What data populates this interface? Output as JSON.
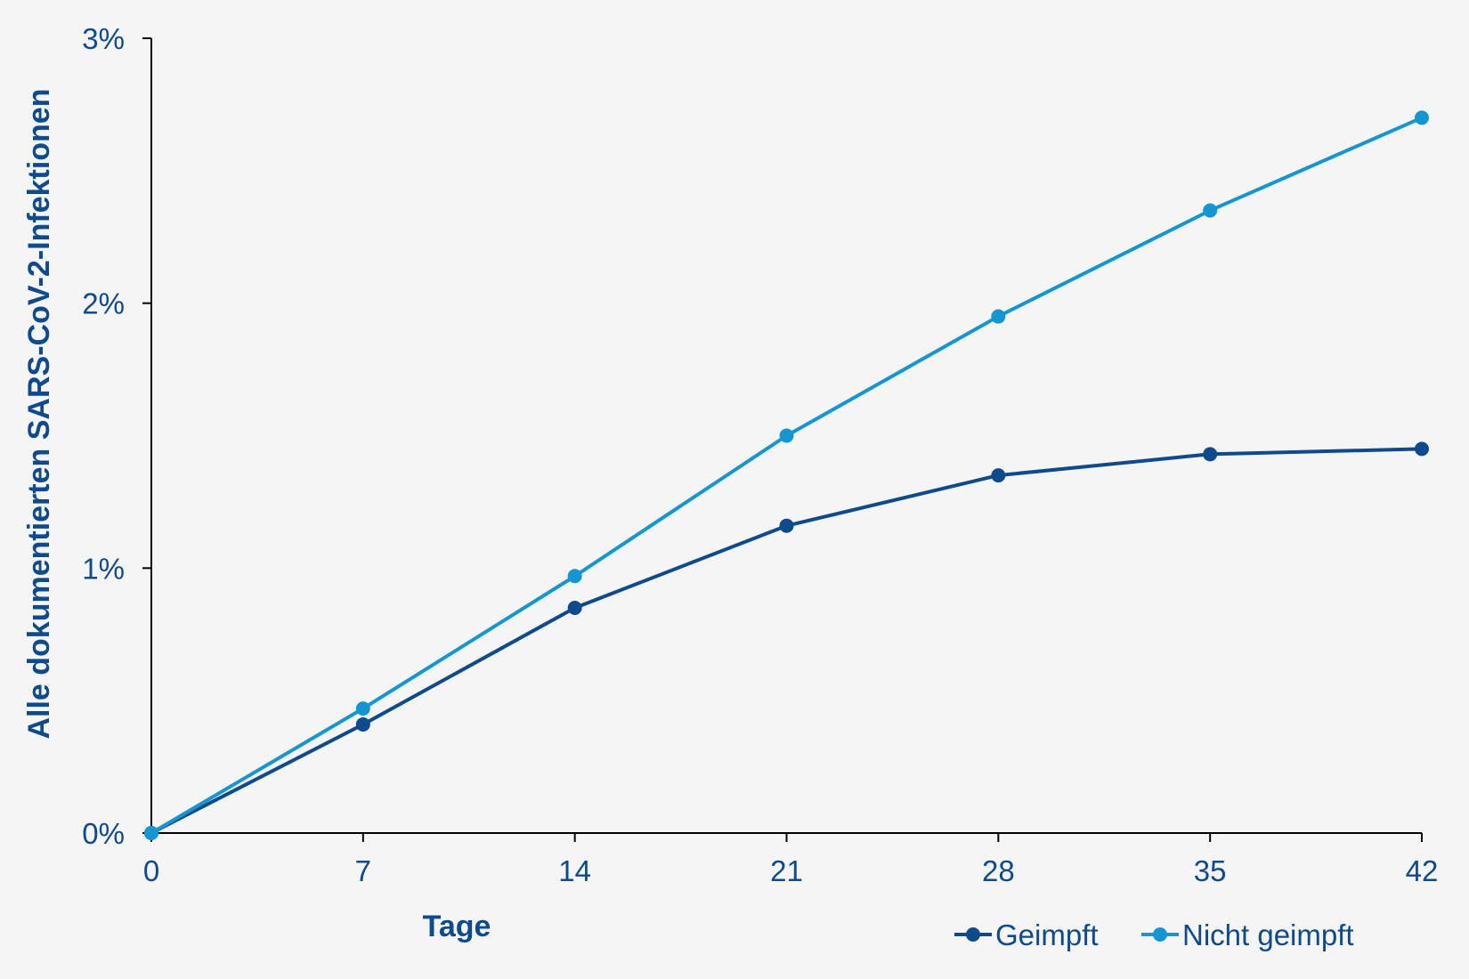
{
  "chart_data": {
    "type": "line",
    "title": "",
    "xlabel": "Tage",
    "ylabel": "Alle dokumentierten SARS-CoV-2-Infektionen",
    "x": [
      0,
      7,
      14,
      21,
      28,
      35,
      42
    ],
    "x_tick_labels": [
      "0",
      "7",
      "14",
      "21",
      "28",
      "35",
      "42"
    ],
    "xlim": [
      0,
      42
    ],
    "y_tick_labels": [
      "0%",
      "1%",
      "2%",
      "3%"
    ],
    "y_ticks": [
      0,
      1,
      2,
      3
    ],
    "ylim": [
      0,
      3
    ],
    "y_unit": "%",
    "grid": false,
    "legend_position": "bottom-right",
    "series": [
      {
        "name": "Geimpft",
        "color": "#0e4a8c",
        "values": [
          0,
          0.41,
          0.85,
          1.16,
          1.35,
          1.43,
          1.45
        ]
      },
      {
        "name": "Nicht geimpft",
        "color": "#1596d2",
        "values": [
          0,
          0.47,
          0.97,
          1.5,
          1.95,
          2.35,
          2.7
        ]
      }
    ],
    "text_color": "#0e4a8c"
  }
}
